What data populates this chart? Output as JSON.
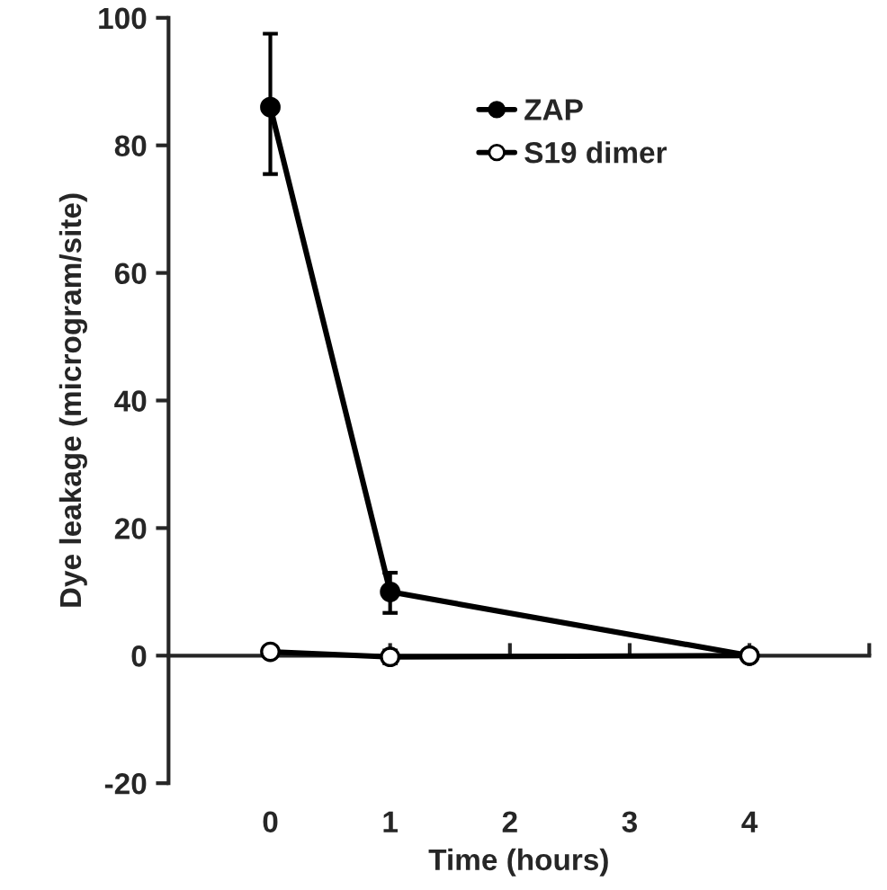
{
  "chart_data": {
    "type": "line",
    "xlabel": "Time (hours)",
    "ylabel": "Dye leakage (microgram/site)",
    "x": [
      0,
      1,
      4
    ],
    "series": [
      {
        "name": "ZAP",
        "color": "#000000",
        "marker": "circle",
        "values": [
          86,
          10,
          0
        ],
        "errors": [
          [
            75.5,
            97.5
          ],
          [
            6.7,
            13
          ],
          null
        ]
      },
      {
        "name": "S19 dimer",
        "color": "#ffffff",
        "marker": "circle",
        "values": [
          0.6,
          -0.2,
          0
        ],
        "errors": [
          null,
          [
            -1.2,
            0.8
          ],
          null
        ]
      }
    ],
    "xlim": [
      -0.85,
      5
    ],
    "xticks": [
      0,
      1,
      2,
      3,
      4,
      {
        "value": 5,
        "label": null
      }
    ],
    "ylim": [
      -20,
      100
    ],
    "yticks": [
      -20,
      0,
      20,
      40,
      60,
      80,
      100
    ],
    "legend": "top right"
  }
}
